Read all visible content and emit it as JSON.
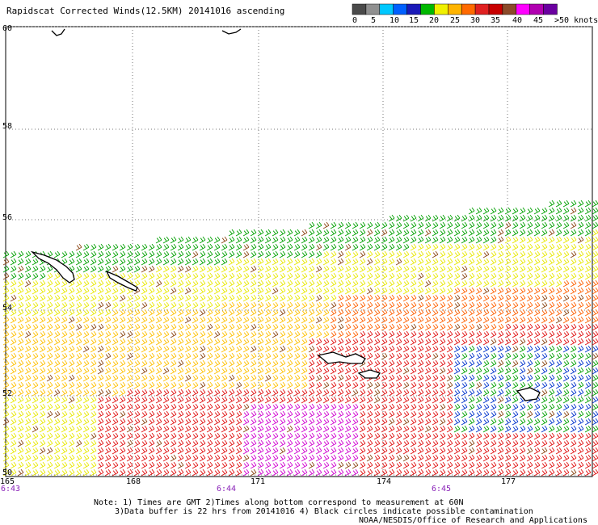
{
  "title": "Rapidscat Corrected Winds(12.5KM) 20141016 ascending",
  "colorbar": {
    "colors": [
      "#4a4a4a",
      "#909090",
      "#00c8ff",
      "#0060ff",
      "#1a1ab8",
      "#00b800",
      "#f0f000",
      "#ffb400",
      "#ff6a00",
      "#e02020",
      "#c80000",
      "#8c4a2a",
      "#ff00ff",
      "#b000b0",
      "#6a00a0"
    ],
    "labels": [
      "0",
      "5",
      "10",
      "15",
      "20",
      "25",
      "30",
      "35",
      "40",
      "45",
      ">50 knots"
    ]
  },
  "lat_labels": [
    "60",
    "58",
    "56",
    "54",
    "52",
    "50"
  ],
  "lon_labels": [
    "165",
    "168",
    "171",
    "174",
    "177"
  ],
  "time_labels": [
    "6:43",
    "6:44",
    "6:45"
  ],
  "notes": {
    "line1": "Note: 1) Times are GMT 2)Times along bottom correspond to measurement at 60N",
    "line2": "3)Data buffer is 22 hrs from 20141016 4) Black circles indicate possible contamination",
    "line3": "NOAA/NESDIS/Office of Research and Applications"
  },
  "style": {
    "speed_colors": [
      "#555555",
      "#00bfff",
      "#0033cc",
      "#00a000",
      "#e8e800",
      "#ffc000",
      "#ff6000",
      "#e01010",
      "#8b4513",
      "#d000d0",
      "#5a0080"
    ]
  }
}
